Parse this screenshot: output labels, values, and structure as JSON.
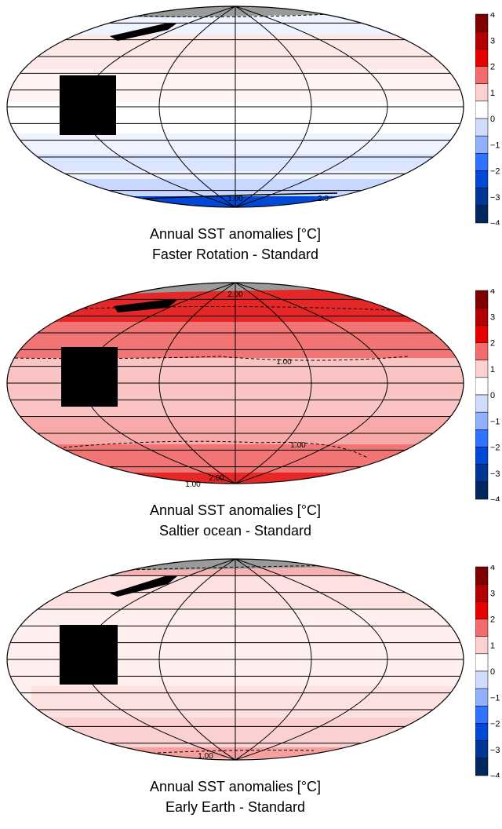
{
  "colorbar": {
    "ticks": [
      "4",
      "3",
      "2",
      "1",
      "0",
      "−1",
      "−2",
      "−3",
      "−4"
    ],
    "colors": [
      "#7f0000",
      "#b30000",
      "#e60000",
      "#f56b6b",
      "#fdd0d0",
      "#ffffff",
      "#cfdcff",
      "#8fb0ff",
      "#2f74ff",
      "#0049d6",
      "#003796",
      "#00275f"
    ]
  },
  "panels": [
    {
      "title": "Annual SST anomalies [°C]",
      "subtitle": "Faster Rotation - Standard",
      "fill": "#eef3ff",
      "contour_labels": [
        "1.00",
        "2.0"
      ]
    },
    {
      "title": "Annual SST anomalies [°C]",
      "subtitle": "Saltier ocean - Standard",
      "fill": "#f8aaaa",
      "contour_labels": [
        "2.00",
        "1.00",
        "1.00",
        "2.00",
        "1.00"
      ]
    },
    {
      "title": "Annual SST anomalies [°C]",
      "subtitle": "Early Earth - Standard",
      "fill": "#fff0ef",
      "contour_labels": [
        "1.00"
      ]
    }
  ]
}
